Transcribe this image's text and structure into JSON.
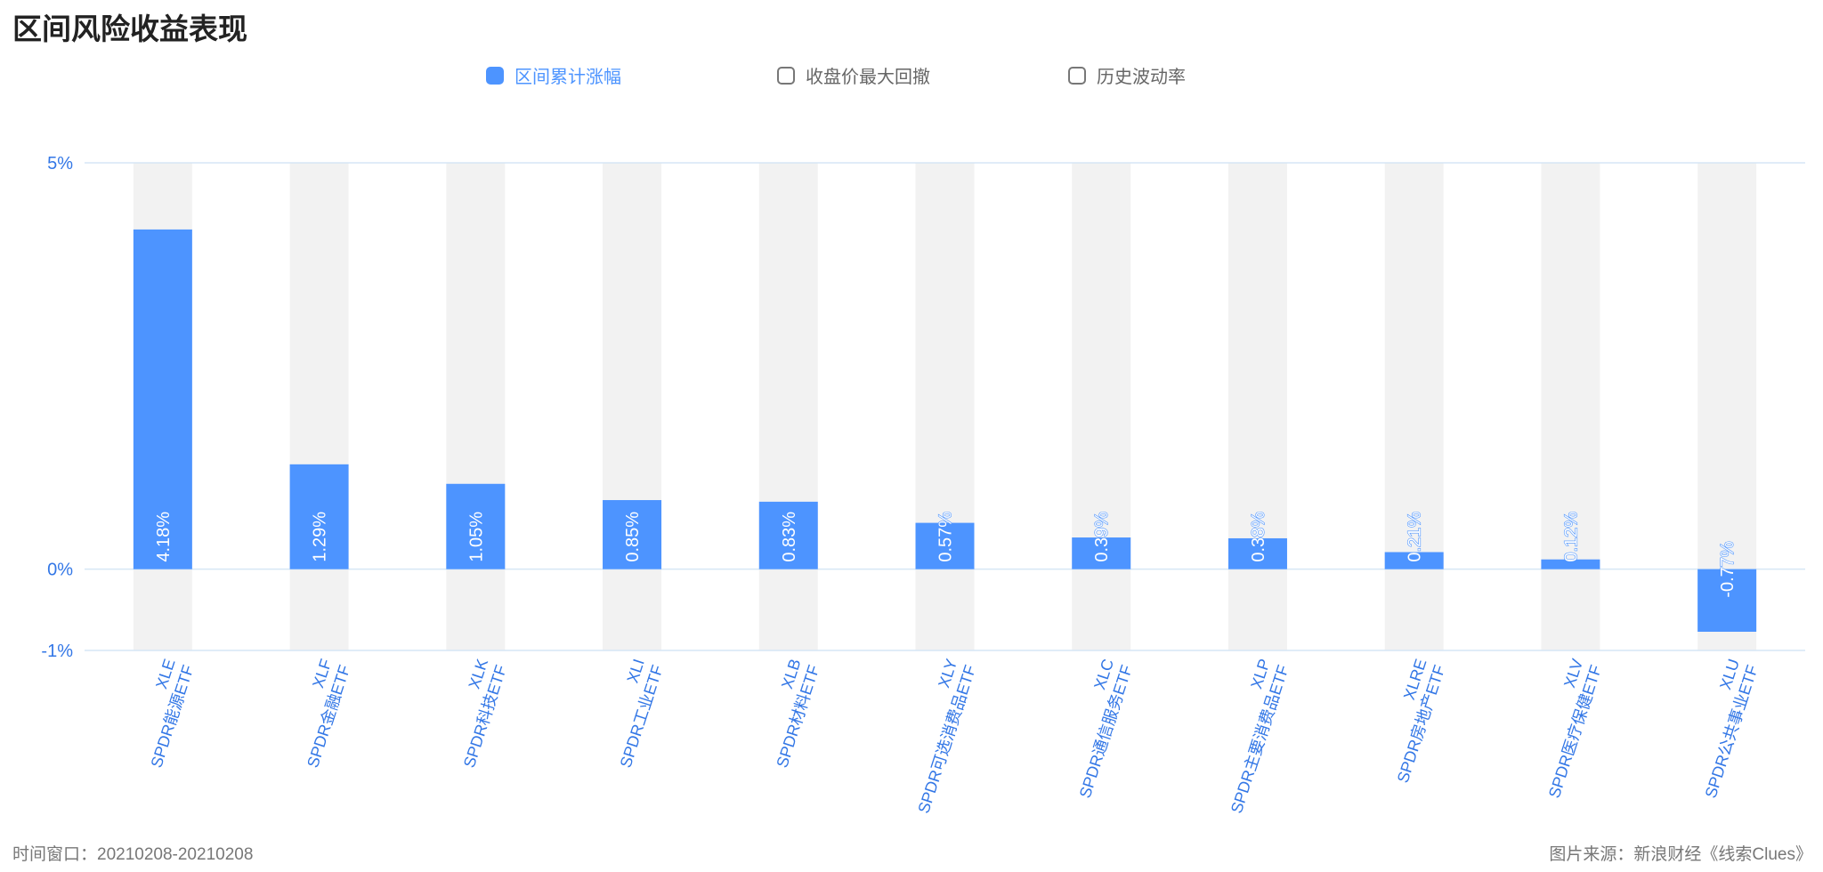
{
  "title": "区间风险收益表现",
  "legend": [
    {
      "label": "区间累计涨幅",
      "checked": true
    },
    {
      "label": "收盘价最大回撤",
      "checked": false
    },
    {
      "label": "历史波动率",
      "checked": false
    }
  ],
  "footer": {
    "time_window": "时间窗口：20210208-20210208",
    "source": "图片来源：新浪财经《线索Clues》"
  },
  "colors": {
    "bar": "#4d94ff",
    "track": "#f2f2f2",
    "axis_text": "#3377e6",
    "grid": "#d6e6f5"
  },
  "chart_data": {
    "type": "bar",
    "title": "区间风险收益表现",
    "categories": [
      {
        "code": "XLE",
        "name": "SPDR能源ETF"
      },
      {
        "code": "XLF",
        "name": "SPDR金融ETF"
      },
      {
        "code": "XLK",
        "name": "SPDR科技ETF"
      },
      {
        "code": "XLI",
        "name": "SPDR工业ETF"
      },
      {
        "code": "XLB",
        "name": "SPDR材料ETF"
      },
      {
        "code": "XLY",
        "name": "SPDR可选消费品ETF"
      },
      {
        "code": "XLC",
        "name": "SPDR通信服务ETF"
      },
      {
        "code": "XLP",
        "name": "SPDR主要消费品ETF"
      },
      {
        "code": "XLRE",
        "name": "SPDR房地产ETF"
      },
      {
        "code": "XLV",
        "name": "SPDR医疗保健ETF"
      },
      {
        "code": "XLU",
        "name": "SPDR公共事业ETF"
      }
    ],
    "series": [
      {
        "name": "区间累计涨幅",
        "values": [
          4.18,
          1.29,
          1.05,
          0.85,
          0.83,
          0.57,
          0.39,
          0.38,
          0.21,
          0.12,
          -0.77
        ],
        "labels": [
          "4.18%",
          "1.29%",
          "1.05%",
          "0.85%",
          "0.83%",
          "0.57%",
          "0.39%",
          "0.38%",
          "0.21%",
          "0.12%",
          "-0.77%"
        ]
      }
    ],
    "ylim": [
      -1,
      5
    ],
    "yticks": [
      {
        "value": 5,
        "label": "5%"
      },
      {
        "value": 0,
        "label": "0%"
      },
      {
        "value": -1,
        "label": "-1%"
      }
    ],
    "xlabel": "",
    "ylabel": "",
    "grid": true,
    "legend_position": "top"
  }
}
